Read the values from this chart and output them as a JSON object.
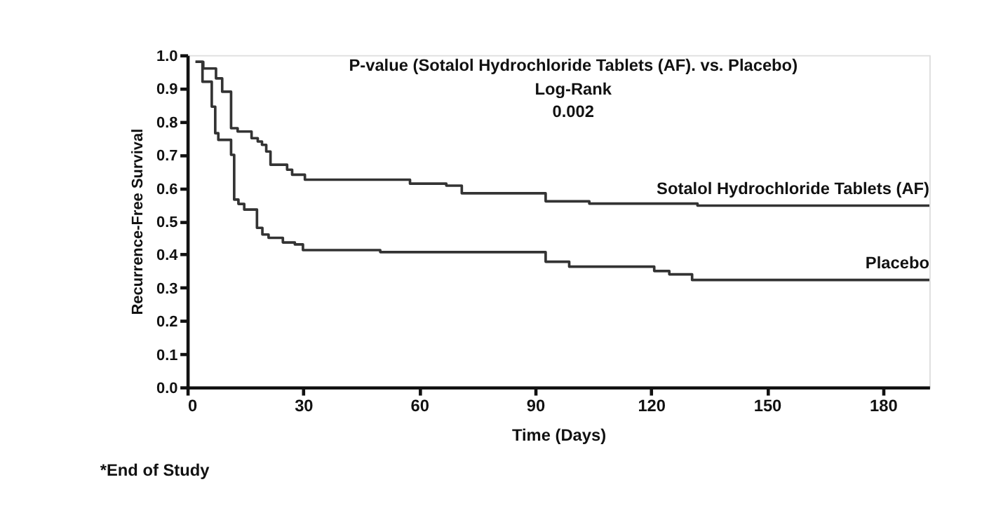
{
  "chart_data": {
    "type": "step",
    "xlabel": "Time (Days)",
    "ylabel": "Recurrence-Free Survival",
    "xlim": [
      0,
      192
    ],
    "xticks": [
      0,
      30,
      60,
      90,
      120,
      150,
      180
    ],
    "ylim": [
      0,
      1
    ],
    "yticks": [
      {
        "value": 0,
        "label": "0.0"
      },
      0.1,
      0.2,
      0.3,
      0.4,
      0.5,
      0.6,
      0.7,
      0.8,
      0.9,
      {
        "value": 1,
        "label": "1.0"
      }
    ],
    "grid": false,
    "legend": false,
    "marker": "none",
    "line_style": "solid",
    "series": [
      {
        "name": "Sotalol Hydrochloride Tablets (AF)",
        "color": "#333333",
        "x": [
          2.1,
          4.1,
          7.4,
          9,
          11.3,
          13,
          16.6,
          18.2,
          19.3,
          20.4,
          21.5,
          25.8,
          27.1,
          30.4,
          57.6,
          67,
          71,
          92.7,
          104,
          132,
          192
        ],
        "values": [
          0.98,
          0.96,
          0.93,
          0.89,
          0.78,
          0.77,
          0.75,
          0.74,
          0.73,
          0.71,
          0.67,
          0.655,
          0.64,
          0.625,
          0.613,
          0.607,
          0.584,
          0.56,
          0.553,
          0.547,
          0.547
        ]
      },
      {
        "name": "Placebo",
        "color": "#333333",
        "x": [
          2.1,
          3.9,
          6.3,
          7.2,
          8,
          11.3,
          12.1,
          13.2,
          14.7,
          18,
          19.4,
          21,
          24.7,
          27.8,
          29.9,
          49.9,
          92.7,
          98.8,
          120.8,
          124.7,
          130.6,
          192
        ],
        "values": [
          0.98,
          0.92,
          0.845,
          0.765,
          0.745,
          0.7,
          0.565,
          0.552,
          0.535,
          0.48,
          0.46,
          0.45,
          0.436,
          0.43,
          0.413,
          0.407,
          0.378,
          0.363,
          0.35,
          0.34,
          0.323,
          0.323
        ]
      }
    ],
    "annotations": [
      "P-value (Sotalol Hydrochloride Tablets (AF). vs. Placebo)",
      "Log-Rank",
      "0.002",
      "*End of Study"
    ]
  }
}
